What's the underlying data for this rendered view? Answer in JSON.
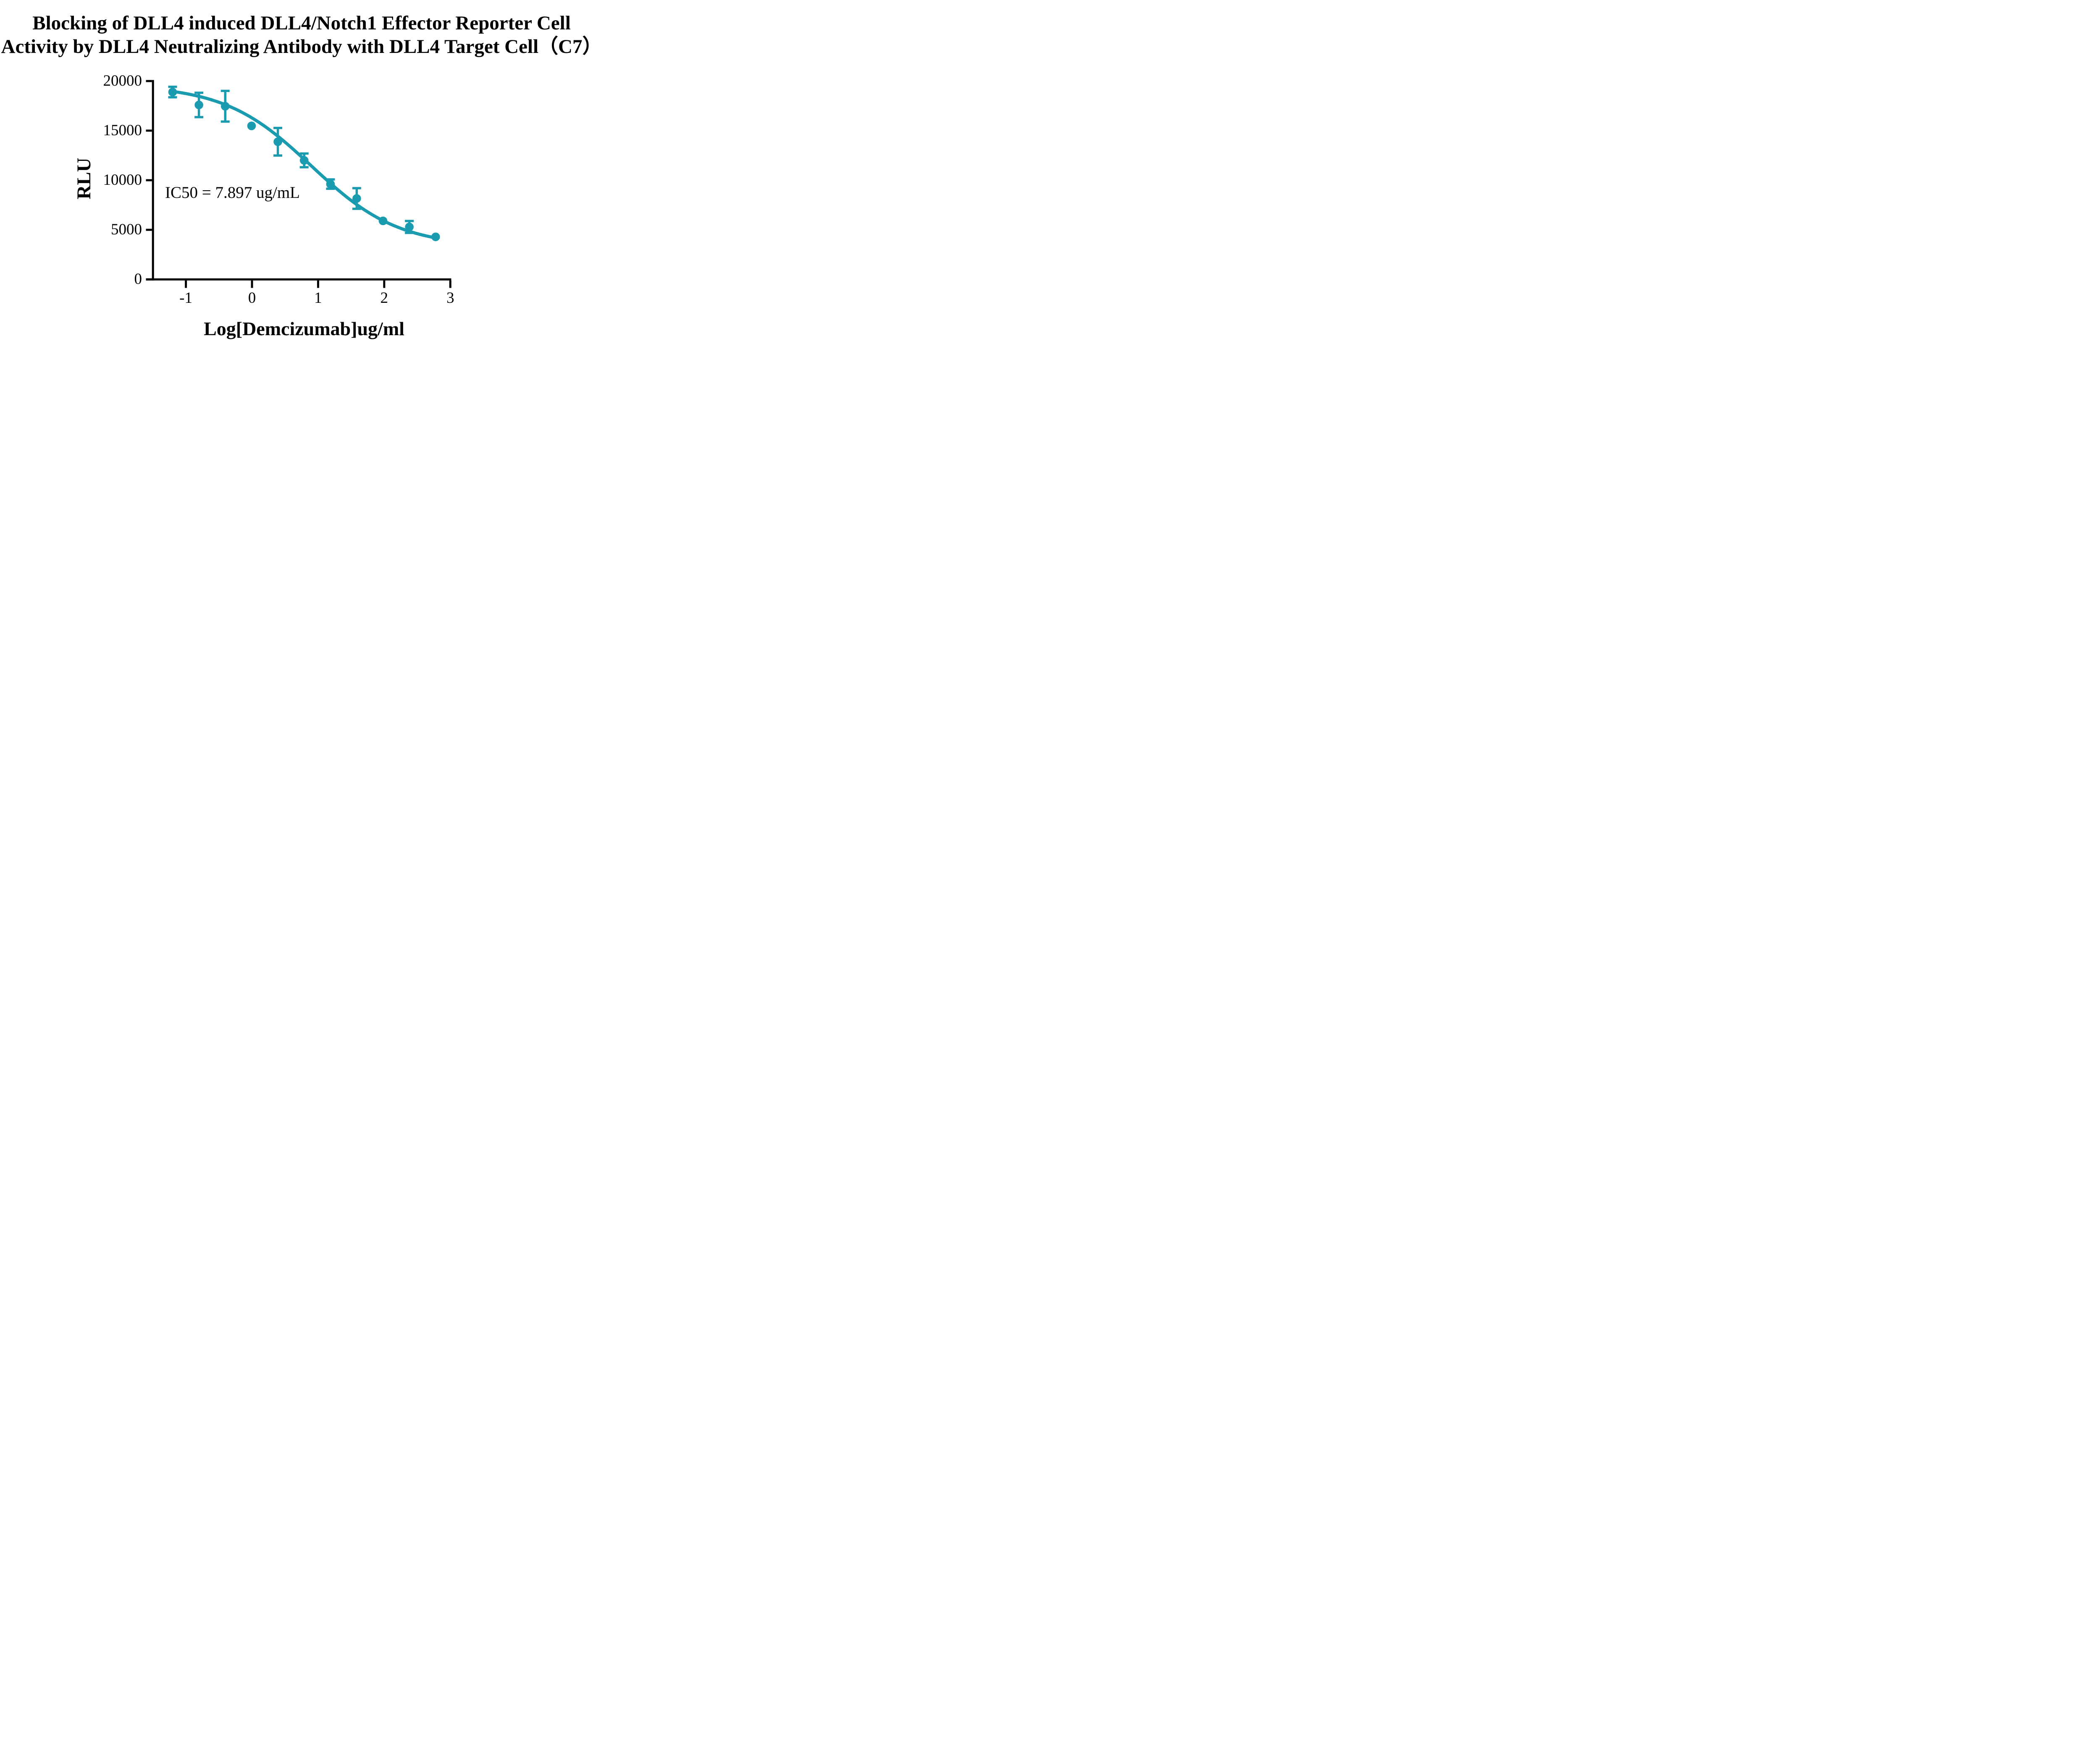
{
  "title": {
    "line1": "Blocking of DLL4 induced DLL4/Notch1 Effector Reporter Cell",
    "line2": "Activity by DLL4 Neutralizing Antibody with DLL4 Target Cell（C7）"
  },
  "chart_data": {
    "type": "scatter",
    "title": "Blocking of DLL4 induced DLL4/Notch1 Effector Reporter Cell Activity by DLL4 Neutralizing Antibody with DLL4 Target Cell（C7）",
    "xlabel": "Log[Demcizumab]ug/ml",
    "ylabel": "RLU",
    "annotation": "IC50 = 7.897 ug/mL",
    "ic50_ug_per_ml": 7.897,
    "accent_color": "#1B9BAF",
    "axis_color": "#000000",
    "grid": false,
    "legend": "none",
    "xlim": [
      -1.5,
      3.02
    ],
    "ylim": [
      0,
      20000
    ],
    "x_ticks": [
      {
        "v": -1,
        "label": "-1"
      },
      {
        "v": 0,
        "label": "0"
      },
      {
        "v": 1,
        "label": "1"
      },
      {
        "v": 2,
        "label": "2"
      },
      {
        "v": 3,
        "label": "3"
      }
    ],
    "y_ticks": [
      {
        "v": 0,
        "label": "0"
      },
      {
        "v": 5000,
        "label": "5000"
      },
      {
        "v": 10000,
        "label": "10000"
      },
      {
        "v": 15000,
        "label": "15000"
      },
      {
        "v": 20000,
        "label": "20000"
      }
    ],
    "points": [
      {
        "x": -1.201,
        "y": 18890,
        "err": 530
      },
      {
        "x": -0.803,
        "y": 17590,
        "err": 1230
      },
      {
        "x": -0.405,
        "y": 17460,
        "err": 1550
      },
      {
        "x": -0.007,
        "y": 15480,
        "err": null
      },
      {
        "x": 0.391,
        "y": 13880,
        "err": 1390
      },
      {
        "x": 0.789,
        "y": 12000,
        "err": 690
      },
      {
        "x": 1.187,
        "y": 9610,
        "err": 470
      },
      {
        "x": 1.584,
        "y": 8160,
        "err": 1040
      },
      {
        "x": 1.982,
        "y": 5900,
        "err": null
      },
      {
        "x": 2.38,
        "y": 5290,
        "err": null
      },
      {
        "x": 2.778,
        "y": 4290,
        "err": null
      }
    ],
    "points_err_note": {
      "x2380_err": 600
    },
    "fit_curve": {
      "model": "4PL",
      "top": 19600,
      "bottom": 3300,
      "hill": 0.66,
      "log_ic50": 0.897,
      "x_start": -1.215,
      "x_end": 2.785
    }
  }
}
